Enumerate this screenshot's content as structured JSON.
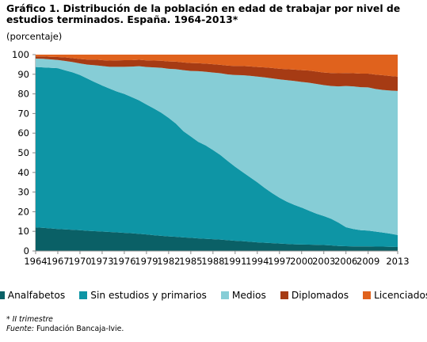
{
  "title": "Gráfico 1. Distribución de la población en edad de trabajar por nivel de estudios terminados. España. 1964-2013*",
  "subtitle": "(porcentaje)",
  "footnote": "* II trimestre",
  "source_label": "Fuente:",
  "source_text": "Fundación Bancaja-Ivie.",
  "chart_data": {
    "type": "area",
    "stacked": true,
    "x": [
      1964,
      1965,
      1966,
      1967,
      1968,
      1969,
      1970,
      1971,
      1972,
      1973,
      1974,
      1975,
      1976,
      1977,
      1978,
      1979,
      1980,
      1981,
      1982,
      1983,
      1984,
      1985,
      1986,
      1987,
      1988,
      1989,
      1990,
      1991,
      1992,
      1993,
      1994,
      1995,
      1996,
      1997,
      1998,
      1999,
      2000,
      2001,
      2002,
      2003,
      2004,
      2005,
      2006,
      2007,
      2008,
      2009,
      2010,
      2011,
      2012,
      2013
    ],
    "xticks": [
      "1964",
      "1967",
      "1970",
      "1973",
      "1976",
      "1979",
      "1982",
      "1985",
      "1988",
      "1991",
      "1994",
      "1997",
      "2000",
      "2003",
      "2006",
      "2009",
      "2013"
    ],
    "yticks": [
      0,
      10,
      20,
      30,
      40,
      50,
      60,
      70,
      80,
      90,
      100
    ],
    "ylim": [
      0,
      100
    ],
    "series": [
      {
        "name": "Analfabetos",
        "color": "#0a6066",
        "values": [
          12,
          11.8,
          11.5,
          11.2,
          11,
          10.8,
          10.6,
          10.3,
          10.1,
          9.9,
          9.7,
          9.5,
          9.2,
          9,
          8.7,
          8.4,
          8,
          7.7,
          7.4,
          7.2,
          6.9,
          6.7,
          6.4,
          6.2,
          6,
          5.8,
          5.5,
          5.2,
          5,
          4.7,
          4.4,
          4.2,
          4,
          3.8,
          3.6,
          3.4,
          3.3,
          3.2,
          3.1,
          3,
          2.8,
          2.5,
          2.4,
          2.3,
          2.3,
          2.3,
          2.2,
          2.2,
          2.1,
          2
        ]
      },
      {
        "name": "Sin estudios y primarios",
        "color": "#0e95a5",
        "values": [
          81.7,
          81.7,
          81.8,
          81.9,
          81,
          80.2,
          79,
          77.5,
          75.9,
          74.4,
          73,
          71.7,
          70.8,
          69.4,
          68,
          66.2,
          64.6,
          62.7,
          60.4,
          57.6,
          54.1,
          51.6,
          49.2,
          47.6,
          45.4,
          43.1,
          40.3,
          37.7,
          35.2,
          32.9,
          30.6,
          27.9,
          25.5,
          23.3,
          21.5,
          20.1,
          18.8,
          17.3,
          15.9,
          14.8,
          13.6,
          11.9,
          9.7,
          8.9,
          8.3,
          8.1,
          7.7,
          7.2,
          6.7,
          6.1
        ]
      },
      {
        "name": "Medios",
        "color": "#86cdd6",
        "values": [
          4.3,
          4.4,
          4.3,
          4.2,
          4.8,
          5.2,
          5.9,
          7.1,
          8.6,
          9.9,
          11.1,
          12.6,
          13.8,
          15.5,
          17.4,
          19.1,
          20.9,
          22.9,
          25,
          27.8,
          31.1,
          33.4,
          36,
          37.5,
          39.5,
          41.6,
          44.1,
          46.7,
          49.3,
          51.6,
          53.8,
          56.3,
          58.4,
          60.3,
          61.9,
          63.1,
          64,
          65.2,
          66.1,
          66.7,
          67.6,
          69.4,
          71.9,
          72.6,
          72.8,
          72.9,
          72.6,
          72.6,
          72.9,
          73.4
        ]
      },
      {
        "name": "Diplomados",
        "color": "#a63b14",
        "values": [
          1.1,
          1.2,
          1.3,
          1.5,
          1.8,
          2,
          2.3,
          2.6,
          2.9,
          3,
          3.2,
          3.3,
          3.4,
          3.3,
          3.3,
          3.4,
          3.5,
          3.6,
          3.7,
          3.8,
          3.9,
          4,
          4,
          4.1,
          4.2,
          4.3,
          4.5,
          4.6,
          4.7,
          4.8,
          4.9,
          5.1,
          5.3,
          5.4,
          5.6,
          5.8,
          6,
          6.2,
          6.3,
          6.4,
          6.6,
          6.7,
          6.6,
          6.7,
          6.9,
          7,
          7.3,
          7.5,
          7.4,
          7.3
        ]
      },
      {
        "name": "Licenciados",
        "color": "#e0621d",
        "values": [
          0.9,
          0.9,
          1.1,
          1.2,
          1.4,
          1.8,
          2.2,
          2.5,
          2.5,
          2.8,
          3,
          2.9,
          2.8,
          2.8,
          2.6,
          2.9,
          3,
          3.1,
          3.5,
          3.6,
          4,
          4.3,
          4.4,
          4.6,
          4.9,
          5.2,
          5.6,
          5.8,
          5.8,
          6,
          6.3,
          6.5,
          6.8,
          7.2,
          7.4,
          7.6,
          7.9,
          8.1,
          8.6,
          9.1,
          9.4,
          9.5,
          9.4,
          9.5,
          9.7,
          9.7,
          10.2,
          10.5,
          10.9,
          11.2
        ]
      }
    ]
  }
}
